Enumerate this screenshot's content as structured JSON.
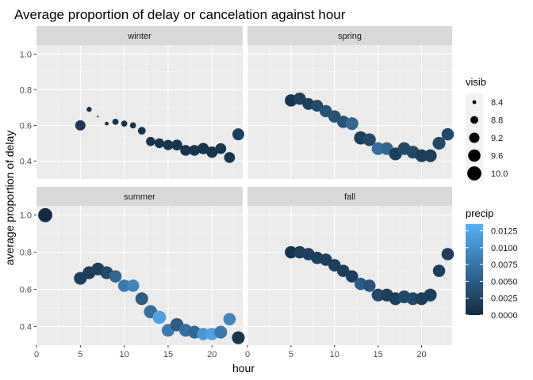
{
  "chart_data": {
    "type": "scatter",
    "title": "Average proportion of delay or cancelation against hour",
    "xlabel": "hour",
    "ylabel": "average proportion of delay",
    "xlim": [
      0,
      23.5
    ],
    "ylim": [
      0.3,
      1.05
    ],
    "x_ticks": [
      0,
      5,
      10,
      15,
      20
    ],
    "y_ticks": [
      0.4,
      0.6,
      0.8,
      1.0
    ],
    "x_tick_labels": [
      "0",
      "5",
      "10",
      "15",
      "20"
    ],
    "y_tick_labels": [
      "0.4",
      "0.6",
      "0.8",
      "1.0"
    ],
    "facet_layout": "2x2",
    "grid": true,
    "size_scale": [
      8.3,
      10.05
    ],
    "color_scale": {
      "min": 0,
      "max": 0.0135,
      "low": "#132B43",
      "high": "#56B1F7"
    },
    "legends": {
      "size": {
        "title": "visib",
        "values": [
          8.4,
          8.8,
          9.2,
          9.6,
          10.0
        ],
        "labels": [
          "8.4",
          "8.8",
          "9.2",
          "9.6",
          "10.0"
        ],
        "placement": "right"
      },
      "color": {
        "title": "precip",
        "values": [
          0.0125,
          0.01,
          0.0075,
          0.005,
          0.0025,
          0
        ],
        "labels": [
          "0.0125",
          "0.0100",
          "0.0075",
          "0.0050",
          "0.0025",
          "0.0000"
        ],
        "placement": "right"
      }
    },
    "facets": [
      {
        "name": "winter",
        "points": [
          {
            "hour": 5,
            "value": 0.6,
            "visib": 9.2,
            "precip": 0.0015
          },
          {
            "hour": 6,
            "value": 0.69,
            "visib": 8.5,
            "precip": 0.001
          },
          {
            "hour": 7,
            "value": 0.65,
            "visib": 8.3,
            "precip": 0.001
          },
          {
            "hour": 8,
            "value": 0.61,
            "visib": 8.4,
            "precip": 0.001
          },
          {
            "hour": 9,
            "value": 0.62,
            "visib": 8.6,
            "precip": 0.001
          },
          {
            "hour": 10,
            "value": 0.61,
            "visib": 8.6,
            "precip": 0.001
          },
          {
            "hour": 11,
            "value": 0.6,
            "visib": 8.6,
            "precip": 0.001
          },
          {
            "hour": 12,
            "value": 0.57,
            "visib": 8.8,
            "precip": 0.001
          },
          {
            "hour": 13,
            "value": 0.51,
            "visib": 9.0,
            "precip": 0.001
          },
          {
            "hour": 14,
            "value": 0.5,
            "visib": 9.1,
            "precip": 0.001
          },
          {
            "hour": 15,
            "value": 0.49,
            "visib": 9.2,
            "precip": 0.001
          },
          {
            "hour": 16,
            "value": 0.49,
            "visib": 9.3,
            "precip": 0.001
          },
          {
            "hour": 17,
            "value": 0.46,
            "visib": 9.3,
            "precip": 0.001
          },
          {
            "hour": 18,
            "value": 0.46,
            "visib": 9.3,
            "precip": 0.001
          },
          {
            "hour": 19,
            "value": 0.47,
            "visib": 9.4,
            "precip": 0.001
          },
          {
            "hour": 20,
            "value": 0.45,
            "visib": 9.4,
            "precip": 0.001
          },
          {
            "hour": 21,
            "value": 0.47,
            "visib": 9.3,
            "precip": 0.001
          },
          {
            "hour": 22,
            "value": 0.42,
            "visib": 9.3,
            "precip": 0.001
          },
          {
            "hour": 23,
            "value": 0.55,
            "visib": 9.5,
            "precip": 0.002
          }
        ]
      },
      {
        "name": "spring",
        "points": [
          {
            "hour": 5,
            "value": 0.74,
            "visib": 9.6,
            "precip": 0.001
          },
          {
            "hour": 6,
            "value": 0.75,
            "visib": 9.6,
            "precip": 0.002
          },
          {
            "hour": 7,
            "value": 0.72,
            "visib": 9.5,
            "precip": 0.002
          },
          {
            "hour": 8,
            "value": 0.71,
            "visib": 9.5,
            "precip": 0.003
          },
          {
            "hour": 9,
            "value": 0.68,
            "visib": 9.6,
            "precip": 0.004
          },
          {
            "hour": 10,
            "value": 0.65,
            "visib": 9.6,
            "precip": 0.004
          },
          {
            "hour": 11,
            "value": 0.62,
            "visib": 9.6,
            "precip": 0.004
          },
          {
            "hour": 12,
            "value": 0.61,
            "visib": 9.7,
            "precip": 0.006
          },
          {
            "hour": 13,
            "value": 0.53,
            "visib": 9.8,
            "precip": 0.002
          },
          {
            "hour": 14,
            "value": 0.52,
            "visib": 9.7,
            "precip": 0.003
          },
          {
            "hour": 15,
            "value": 0.47,
            "visib": 9.7,
            "precip": 0.007
          },
          {
            "hour": 16,
            "value": 0.47,
            "visib": 9.7,
            "precip": 0.006
          },
          {
            "hour": 17,
            "value": 0.44,
            "visib": 9.7,
            "precip": 0.002
          },
          {
            "hour": 18,
            "value": 0.47,
            "visib": 9.7,
            "precip": 0.003
          },
          {
            "hour": 19,
            "value": 0.45,
            "visib": 9.7,
            "precip": 0.003
          },
          {
            "hour": 20,
            "value": 0.43,
            "visib": 9.7,
            "precip": 0.002
          },
          {
            "hour": 21,
            "value": 0.43,
            "visib": 9.7,
            "precip": 0.002
          },
          {
            "hour": 22,
            "value": 0.5,
            "visib": 9.7,
            "precip": 0.003
          },
          {
            "hour": 23,
            "value": 0.55,
            "visib": 9.6,
            "precip": 0.003
          }
        ]
      },
      {
        "name": "summer",
        "points": [
          {
            "hour": 1,
            "value": 1.0,
            "visib": 10.0,
            "precip": 0.0
          },
          {
            "hour": 5,
            "value": 0.66,
            "visib": 9.7,
            "precip": 0.002
          },
          {
            "hour": 6,
            "value": 0.69,
            "visib": 9.7,
            "precip": 0.002
          },
          {
            "hour": 7,
            "value": 0.71,
            "visib": 9.7,
            "precip": 0.002
          },
          {
            "hour": 8,
            "value": 0.69,
            "visib": 9.7,
            "precip": 0.003
          },
          {
            "hour": 9,
            "value": 0.67,
            "visib": 9.6,
            "precip": 0.006
          },
          {
            "hour": 10,
            "value": 0.62,
            "visib": 9.6,
            "precip": 0.008
          },
          {
            "hour": 11,
            "value": 0.62,
            "visib": 9.6,
            "precip": 0.009
          },
          {
            "hour": 12,
            "value": 0.55,
            "visib": 9.7,
            "precip": 0.005
          },
          {
            "hour": 13,
            "value": 0.48,
            "visib": 9.8,
            "precip": 0.007
          },
          {
            "hour": 14,
            "value": 0.45,
            "visib": 9.8,
            "precip": 0.012
          },
          {
            "hour": 15,
            "value": 0.38,
            "visib": 9.7,
            "precip": 0.008
          },
          {
            "hour": 16,
            "value": 0.41,
            "visib": 9.8,
            "precip": 0.005
          },
          {
            "hour": 17,
            "value": 0.38,
            "visib": 9.7,
            "precip": 0.007
          },
          {
            "hour": 18,
            "value": 0.37,
            "visib": 9.7,
            "precip": 0.006
          },
          {
            "hour": 19,
            "value": 0.36,
            "visib": 9.6,
            "precip": 0.011
          },
          {
            "hour": 20,
            "value": 0.36,
            "visib": 9.6,
            "precip": 0.012
          },
          {
            "hour": 21,
            "value": 0.37,
            "visib": 9.7,
            "precip": 0.008
          },
          {
            "hour": 22,
            "value": 0.44,
            "visib": 9.6,
            "precip": 0.009
          },
          {
            "hour": 23,
            "value": 0.34,
            "visib": 9.7,
            "precip": 0.001
          }
        ]
      },
      {
        "name": "fall",
        "points": [
          {
            "hour": 5,
            "value": 0.8,
            "visib": 9.6,
            "precip": 0.001
          },
          {
            "hour": 6,
            "value": 0.8,
            "visib": 9.6,
            "precip": 0.002
          },
          {
            "hour": 7,
            "value": 0.79,
            "visib": 9.6,
            "precip": 0.002
          },
          {
            "hour": 8,
            "value": 0.77,
            "visib": 9.6,
            "precip": 0.002
          },
          {
            "hour": 9,
            "value": 0.76,
            "visib": 9.6,
            "precip": 0.002
          },
          {
            "hour": 10,
            "value": 0.73,
            "visib": 9.6,
            "precip": 0.002
          },
          {
            "hour": 11,
            "value": 0.7,
            "visib": 9.6,
            "precip": 0.002
          },
          {
            "hour": 12,
            "value": 0.67,
            "visib": 9.6,
            "precip": 0.002
          },
          {
            "hour": 13,
            "value": 0.63,
            "visib": 9.6,
            "precip": 0.005
          },
          {
            "hour": 14,
            "value": 0.62,
            "visib": 9.6,
            "precip": 0.004
          },
          {
            "hour": 15,
            "value": 0.57,
            "visib": 9.7,
            "precip": 0.003
          },
          {
            "hour": 16,
            "value": 0.57,
            "visib": 9.7,
            "precip": 0.002
          },
          {
            "hour": 17,
            "value": 0.55,
            "visib": 9.7,
            "precip": 0.002
          },
          {
            "hour": 18,
            "value": 0.56,
            "visib": 9.7,
            "precip": 0.003
          },
          {
            "hour": 19,
            "value": 0.55,
            "visib": 9.7,
            "precip": 0.003
          },
          {
            "hour": 20,
            "value": 0.55,
            "visib": 9.7,
            "precip": 0.002
          },
          {
            "hour": 21,
            "value": 0.57,
            "visib": 9.7,
            "precip": 0.002
          },
          {
            "hour": 22,
            "value": 0.7,
            "visib": 9.6,
            "precip": 0.002
          },
          {
            "hour": 23,
            "value": 0.79,
            "visib": 9.6,
            "precip": 0.002
          }
        ]
      }
    ]
  }
}
